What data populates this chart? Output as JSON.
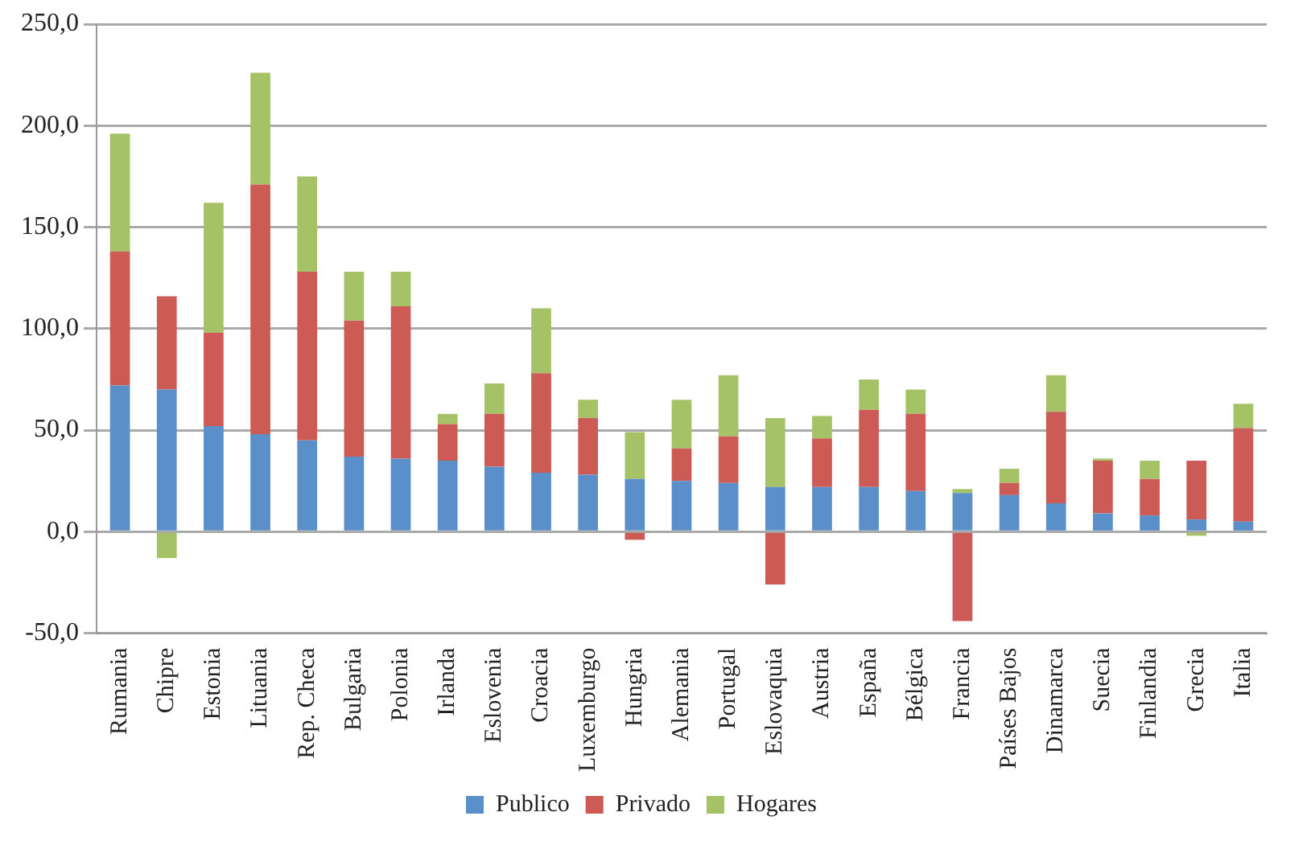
{
  "chart_data": {
    "type": "bar",
    "stacked": true,
    "categories": [
      "Rumania",
      "Chipre",
      "Estonia",
      "Lituania",
      "Rep. Checa",
      "Bulgaria",
      "Polonia",
      "Irlanda",
      "Eslovenia",
      "Croacia",
      "Luxemburgo",
      "Hungria",
      "Alemania",
      "Portugal",
      "Eslovaquia",
      "Austria",
      "España",
      "Bélgica",
      "Francia",
      "Países Bajos",
      "Dinamarca",
      "Suecia",
      "Finlandia",
      "Grecia",
      "Italia"
    ],
    "series": [
      {
        "name": "Publico",
        "color": "#5b8fc9",
        "values": [
          72,
          70,
          52,
          48,
          45,
          37,
          36,
          35,
          32,
          29,
          28,
          26,
          25,
          24,
          22,
          22,
          22,
          20,
          19,
          18,
          14,
          9,
          8,
          6,
          5
        ]
      },
      {
        "name": "Privado",
        "color": "#cc5a55",
        "values": [
          66,
          46,
          46,
          123,
          83,
          67,
          75,
          18,
          26,
          49,
          28,
          -4,
          16,
          23,
          -26,
          24,
          38,
          38,
          -44,
          6,
          45,
          26,
          18,
          29,
          46
        ]
      },
      {
        "name": "Hogares",
        "color": "#a5c266",
        "values": [
          58,
          -13,
          64,
          55,
          47,
          24,
          17,
          5,
          15,
          32,
          9,
          23,
          24,
          30,
          34,
          11,
          15,
          12,
          2,
          7,
          18,
          1,
          9,
          -2,
          12
        ]
      }
    ],
    "ylim": [
      -50,
      250
    ],
    "yticks": [
      {
        "value": -50,
        "label": "-50,0"
      },
      {
        "value": 0,
        "label": "0,0"
      },
      {
        "value": 50,
        "label": "50,0"
      },
      {
        "value": 100,
        "label": "100,0"
      },
      {
        "value": 150,
        "label": "150,0"
      },
      {
        "value": 200,
        "label": "200,0"
      },
      {
        "value": 250,
        "label": "250,0"
      }
    ],
    "grid": "y",
    "legend": "bottom"
  }
}
